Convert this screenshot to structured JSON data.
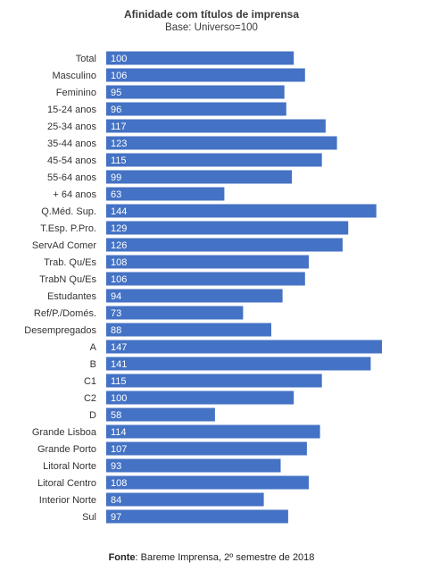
{
  "chart_data": {
    "type": "bar",
    "orientation": "horizontal",
    "title": "Afinidade com títulos de imprensa",
    "subtitle": "Base: Universo=100",
    "categories": [
      "Total",
      "Masculino",
      "Feminino",
      "15-24 anos",
      "25-34 anos",
      "35-44 anos",
      "45-54 anos",
      "55-64 anos",
      "+ 64 anos",
      "Q.Méd. Sup.",
      "T.Esp. P.Pro.",
      "ServAd Comer",
      "Trab. Qu/Es",
      "TrabN Qu/Es",
      "Estudantes",
      "Ref/P./Domés.",
      "Desempregados",
      "A",
      "B",
      "C1",
      "C2",
      "D",
      "Grande Lisboa",
      "Grande Porto",
      "Litoral Norte",
      "Litoral Centro",
      "Interior Norte",
      "Sul"
    ],
    "values": [
      100,
      106,
      95,
      96,
      117,
      123,
      115,
      99,
      63,
      144,
      129,
      126,
      108,
      106,
      94,
      73,
      88,
      147,
      141,
      115,
      100,
      58,
      114,
      107,
      93,
      108,
      84,
      97
    ],
    "xlim": [
      0,
      147
    ],
    "data_labels": "inside-left",
    "grid": false,
    "color": "#4472C4"
  },
  "source": {
    "label": "Fonte",
    "text": ": Bareme Imprensa, 2º semestre de 2018"
  }
}
